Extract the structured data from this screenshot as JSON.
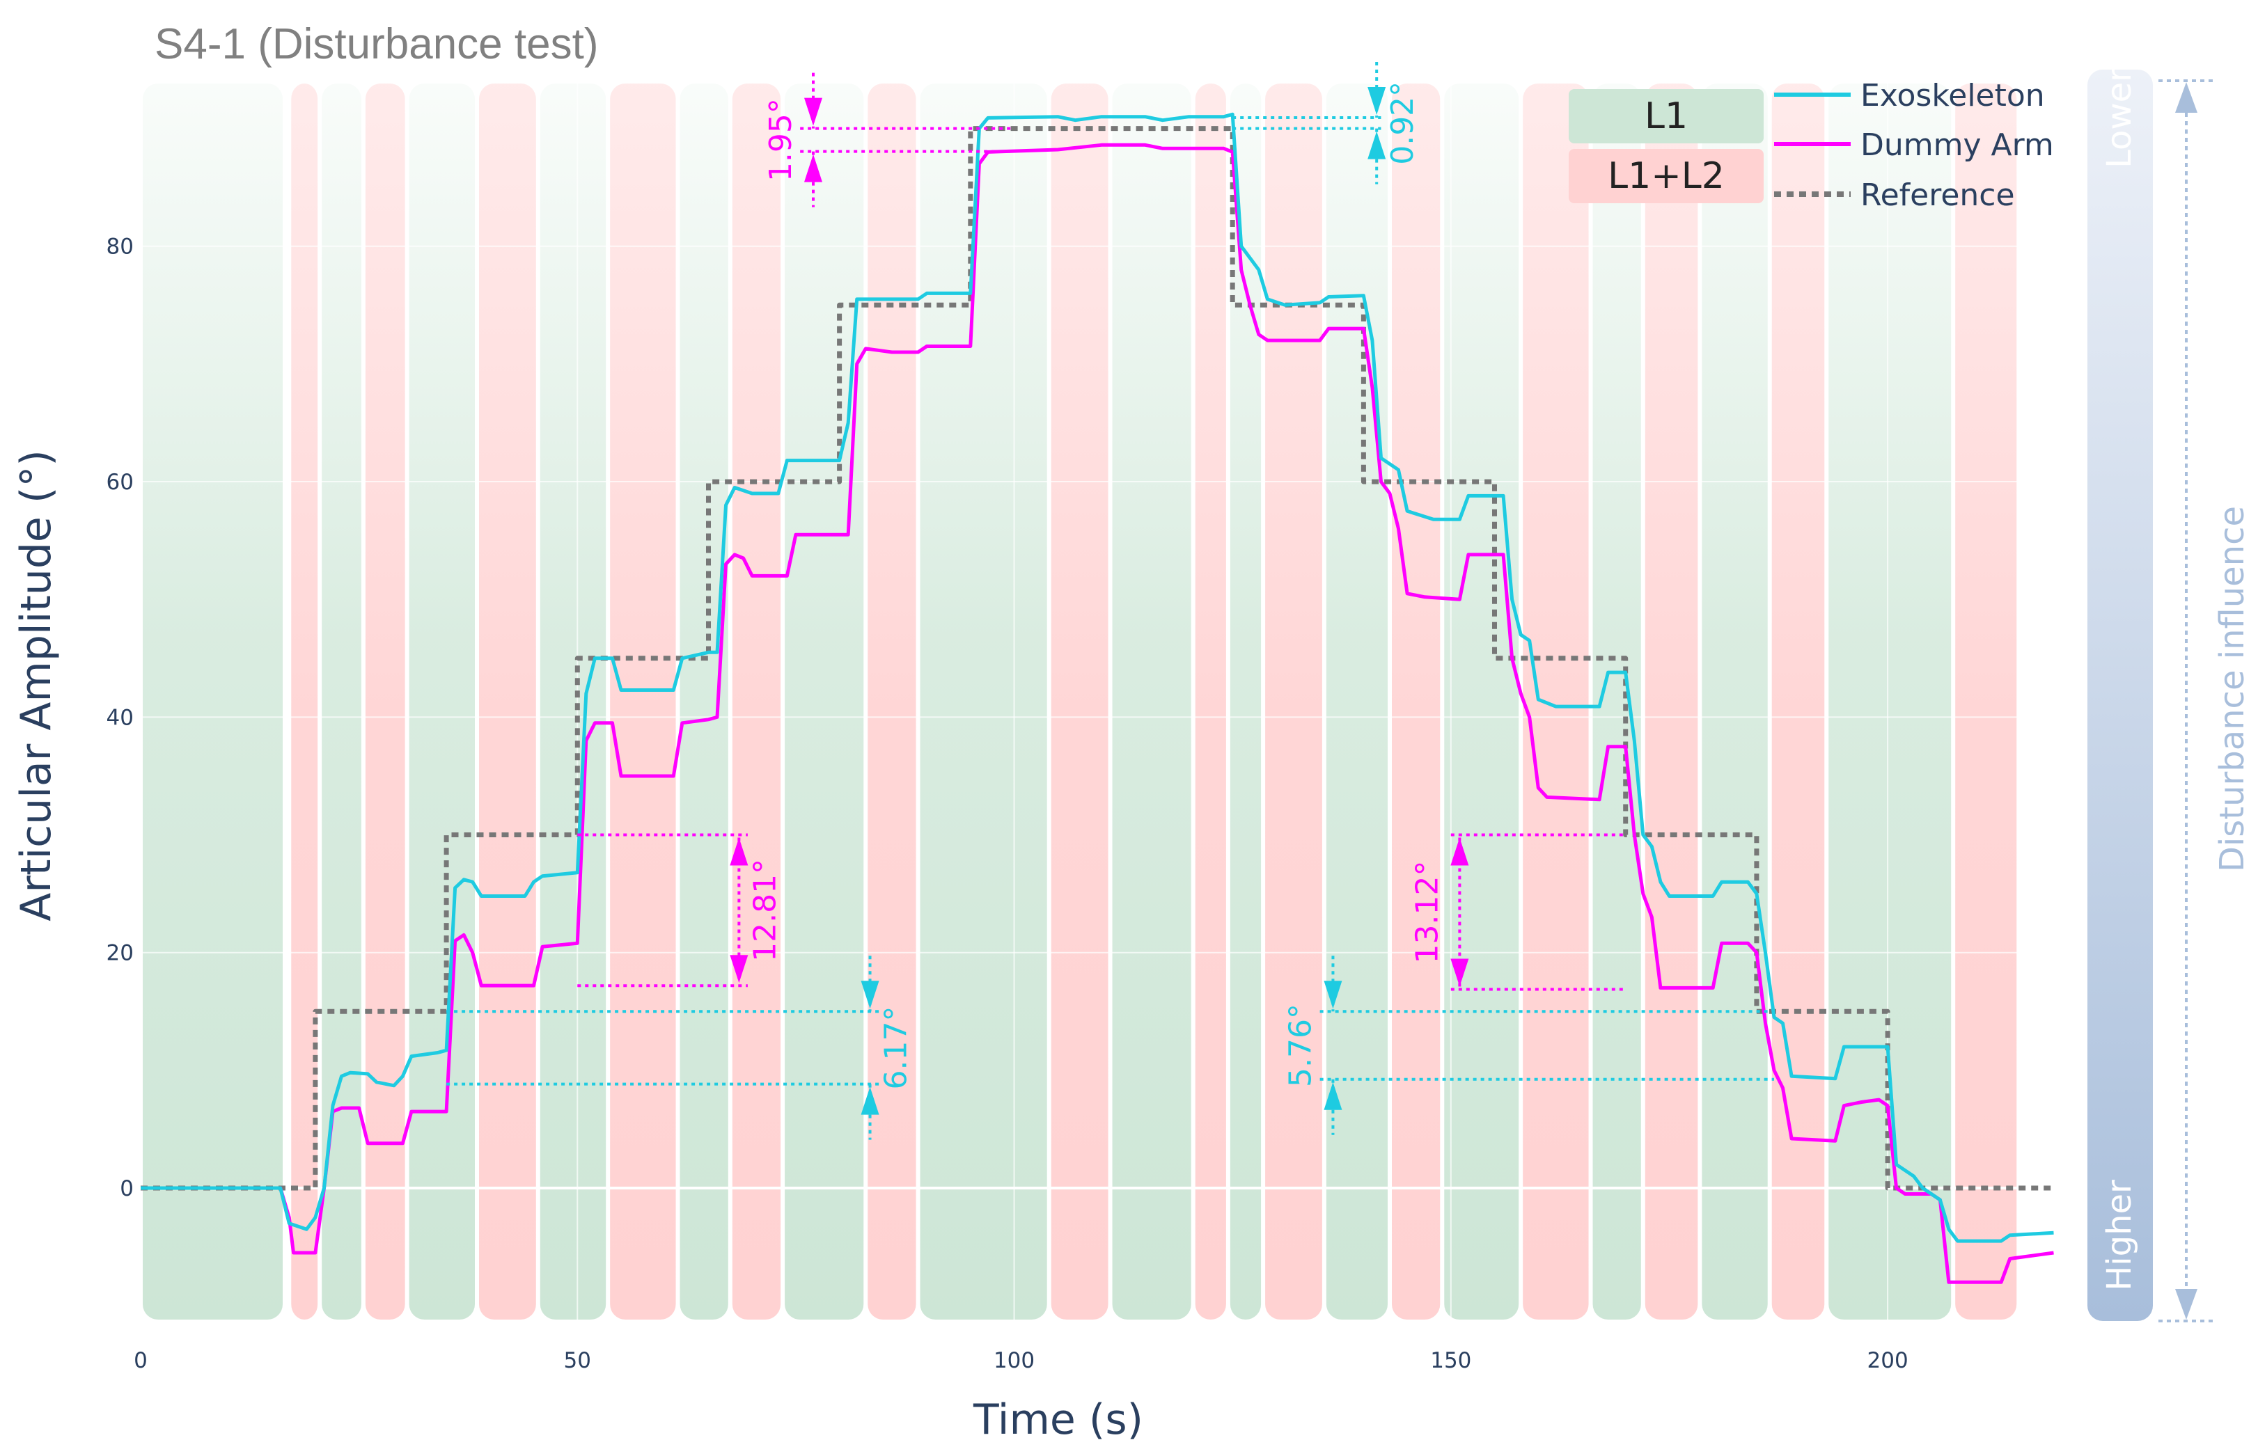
{
  "title": "S4-1 (Disturbance test)",
  "colors": {
    "exoskeleton": "#1ecbe1",
    "dummy": "#ff00ff",
    "reference": "#777777",
    "l1": "#cde6d6",
    "l2": "#ffd2d2",
    "axis_text": "#2a3f5f",
    "side": "#a8bedb"
  },
  "legend": {
    "level1": "L1",
    "level2": "L1+L2",
    "exoskeleton": "Exoskeleton",
    "dummy": "Dummy Arm",
    "reference": "Reference"
  },
  "side_scale": {
    "top": "Lower",
    "bottom": "Higher",
    "label": "Disturbance influence"
  },
  "chart_data": {
    "type": "line",
    "title": "S4-1 (Disturbance test)",
    "xlabel": "Time (s)",
    "ylabel": "Articular Amplitude (°)",
    "xlim": [
      0,
      220
    ],
    "ylim": [
      -12,
      95
    ],
    "x_ticks": [
      0,
      50,
      100,
      150,
      200
    ],
    "y_ticks": [
      0,
      20,
      40,
      60,
      80
    ],
    "grid": true,
    "legend_position": "top-right",
    "series": [
      {
        "name": "Exoskeleton",
        "points": [
          [
            0,
            0
          ],
          [
            16,
            0
          ],
          [
            17,
            -3
          ],
          [
            19,
            -3.5
          ],
          [
            20,
            -2.5
          ],
          [
            21,
            0
          ],
          [
            22,
            7
          ],
          [
            23,
            9.5
          ],
          [
            24,
            9.8
          ],
          [
            26,
            9.7
          ],
          [
            27,
            9
          ],
          [
            29,
            8.7
          ],
          [
            30,
            9.5
          ],
          [
            31,
            11.2
          ],
          [
            34,
            11.5
          ],
          [
            35,
            11.7
          ],
          [
            36,
            25.5
          ],
          [
            37,
            26.2
          ],
          [
            38,
            26
          ],
          [
            39,
            24.8
          ],
          [
            44,
            24.8
          ],
          [
            45,
            26
          ],
          [
            46,
            26.5
          ],
          [
            50,
            26.8
          ],
          [
            51,
            42
          ],
          [
            52,
            45
          ],
          [
            54,
            45
          ],
          [
            55,
            42.3
          ],
          [
            61,
            42.3
          ],
          [
            62,
            45
          ],
          [
            65,
            45.5
          ],
          [
            66,
            45.5
          ],
          [
            67,
            58
          ],
          [
            68,
            59.5
          ],
          [
            70,
            59
          ],
          [
            73,
            59
          ],
          [
            74,
            61.8
          ],
          [
            80,
            61.8
          ],
          [
            81,
            65
          ],
          [
            82,
            75.5
          ],
          [
            84,
            75.5
          ],
          [
            89,
            75.5
          ],
          [
            90,
            76
          ],
          [
            95,
            76
          ],
          [
            96,
            90
          ],
          [
            97,
            90.9
          ],
          [
            105,
            91
          ],
          [
            107,
            90.7
          ],
          [
            110,
            91
          ],
          [
            115,
            91
          ],
          [
            117,
            90.7
          ],
          [
            120,
            91
          ],
          [
            124,
            91
          ],
          [
            125,
            91.2
          ],
          [
            126,
            80
          ],
          [
            127,
            79
          ],
          [
            128,
            78
          ],
          [
            129,
            75.5
          ],
          [
            131,
            75
          ],
          [
            135,
            75.2
          ],
          [
            136,
            75.7
          ],
          [
            140,
            75.8
          ],
          [
            141,
            72
          ],
          [
            142,
            62
          ],
          [
            144,
            61
          ],
          [
            145,
            57.5
          ],
          [
            148,
            56.8
          ],
          [
            151,
            56.8
          ],
          [
            152,
            58.8
          ],
          [
            156,
            58.8
          ],
          [
            157,
            50
          ],
          [
            158,
            47
          ],
          [
            159,
            46.5
          ],
          [
            160,
            41.5
          ],
          [
            162,
            40.9
          ],
          [
            167,
            40.9
          ],
          [
            168,
            43.8
          ],
          [
            170,
            43.8
          ],
          [
            171,
            38
          ],
          [
            172,
            30
          ],
          [
            173,
            29
          ],
          [
            174,
            26
          ],
          [
            175,
            24.8
          ],
          [
            180,
            24.8
          ],
          [
            181,
            26
          ],
          [
            184,
            26
          ],
          [
            185,
            25
          ],
          [
            186,
            20
          ],
          [
            187,
            14.5
          ],
          [
            188,
            14
          ],
          [
            189,
            9.5
          ],
          [
            194,
            9.3
          ],
          [
            195,
            12
          ],
          [
            200,
            12
          ],
          [
            201,
            2
          ],
          [
            203,
            1
          ],
          [
            204,
            0
          ],
          [
            206,
            -1
          ],
          [
            207,
            -3.5
          ],
          [
            208,
            -4.5
          ],
          [
            213,
            -4.5
          ],
          [
            214,
            -4
          ],
          [
            219,
            -3.8
          ]
        ]
      },
      {
        "name": "Dummy Arm",
        "points": [
          [
            0,
            0
          ],
          [
            16,
            0
          ],
          [
            17,
            -2.5
          ],
          [
            17.5,
            -5.5
          ],
          [
            20,
            -5.5
          ],
          [
            21,
            0
          ],
          [
            22,
            6.5
          ],
          [
            23,
            6.8
          ],
          [
            25,
            6.8
          ],
          [
            26,
            3.8
          ],
          [
            30,
            3.8
          ],
          [
            31,
            6.5
          ],
          [
            35,
            6.5
          ],
          [
            36,
            21
          ],
          [
            37,
            21.5
          ],
          [
            38,
            20
          ],
          [
            39,
            17.2
          ],
          [
            45,
            17.2
          ],
          [
            46,
            20.5
          ],
          [
            50,
            20.8
          ],
          [
            51,
            38
          ],
          [
            52,
            39.5
          ],
          [
            54,
            39.5
          ],
          [
            55,
            35
          ],
          [
            61,
            35
          ],
          [
            62,
            39.5
          ],
          [
            65,
            39.8
          ],
          [
            66,
            40
          ],
          [
            67,
            53
          ],
          [
            68,
            53.8
          ],
          [
            69,
            53.5
          ],
          [
            70,
            52
          ],
          [
            74,
            52
          ],
          [
            75,
            55.5
          ],
          [
            81,
            55.5
          ],
          [
            82,
            70
          ],
          [
            83,
            71.3
          ],
          [
            86,
            71
          ],
          [
            89,
            71
          ],
          [
            90,
            71.5
          ],
          [
            95,
            71.5
          ],
          [
            96,
            87
          ],
          [
            97,
            88
          ],
          [
            105,
            88.2
          ],
          [
            110,
            88.6
          ],
          [
            115,
            88.6
          ],
          [
            117,
            88.3
          ],
          [
            120,
            88.3
          ],
          [
            124,
            88.3
          ],
          [
            125,
            88
          ],
          [
            126,
            78
          ],
          [
            127,
            75
          ],
          [
            128,
            72.5
          ],
          [
            129,
            72
          ],
          [
            135,
            72
          ],
          [
            136,
            73
          ],
          [
            140,
            73
          ],
          [
            141,
            68
          ],
          [
            142,
            60
          ],
          [
            143,
            59
          ],
          [
            144,
            56
          ],
          [
            145,
            50.5
          ],
          [
            147,
            50.2
          ],
          [
            151,
            50
          ],
          [
            152,
            53.8
          ],
          [
            156,
            53.8
          ],
          [
            157,
            45
          ],
          [
            158,
            42
          ],
          [
            159,
            40
          ],
          [
            160,
            34
          ],
          [
            161,
            33.2
          ],
          [
            167,
            33
          ],
          [
            168,
            37.5
          ],
          [
            170,
            37.5
          ],
          [
            171,
            30
          ],
          [
            172,
            25
          ],
          [
            173,
            23
          ],
          [
            174,
            17
          ],
          [
            180,
            17
          ],
          [
            181,
            20.8
          ],
          [
            184,
            20.8
          ],
          [
            185,
            20
          ],
          [
            186,
            14
          ],
          [
            187,
            10
          ],
          [
            188,
            8.5
          ],
          [
            189,
            4.2
          ],
          [
            194,
            4
          ],
          [
            195,
            7
          ],
          [
            197,
            7.3
          ],
          [
            199,
            7.5
          ],
          [
            200,
            7
          ],
          [
            201,
            0
          ],
          [
            202,
            -0.5
          ],
          [
            205,
            -0.5
          ],
          [
            206,
            -1
          ],
          [
            207,
            -8
          ],
          [
            213,
            -8
          ],
          [
            214,
            -6
          ],
          [
            219,
            -5.5
          ]
        ]
      },
      {
        "name": "Reference",
        "points": [
          [
            0,
            0
          ],
          [
            20,
            0
          ],
          [
            20,
            15
          ],
          [
            35,
            15
          ],
          [
            35,
            30
          ],
          [
            50,
            30
          ],
          [
            50,
            45
          ],
          [
            65,
            45
          ],
          [
            65,
            60
          ],
          [
            80,
            60
          ],
          [
            80,
            75
          ],
          [
            95,
            75
          ],
          [
            95,
            90
          ],
          [
            125,
            90
          ],
          [
            125,
            75
          ],
          [
            140,
            75
          ],
          [
            140,
            60
          ],
          [
            155,
            60
          ],
          [
            155,
            45
          ],
          [
            170,
            45
          ],
          [
            170,
            30
          ],
          [
            185,
            30
          ],
          [
            185,
            15
          ],
          [
            200,
            15
          ],
          [
            200,
            0
          ],
          [
            219,
            0
          ]
        ]
      }
    ],
    "phases": [
      {
        "level": "L1",
        "x": [
          0,
          16.5
        ]
      },
      {
        "level": "L1+L2",
        "x": [
          17,
          20.5
        ]
      },
      {
        "level": "L1",
        "x": [
          20.5,
          25.5
        ]
      },
      {
        "level": "L1+L2",
        "x": [
          25.5,
          30.5
        ]
      },
      {
        "level": "L1",
        "x": [
          30.5,
          38.5
        ]
      },
      {
        "level": "L1+L2",
        "x": [
          38.5,
          45.5
        ]
      },
      {
        "level": "L1",
        "x": [
          45.5,
          53.5
        ]
      },
      {
        "level": "L1+L2",
        "x": [
          53.5,
          61.5
        ]
      },
      {
        "level": "L1",
        "x": [
          61.5,
          67.5
        ]
      },
      {
        "level": "L1+L2",
        "x": [
          67.5,
          73.5
        ]
      },
      {
        "level": "L1",
        "x": [
          73.5,
          83
        ]
      },
      {
        "level": "L1+L2",
        "x": [
          83,
          89
        ]
      },
      {
        "level": "L1",
        "x": [
          89,
          104
        ]
      },
      {
        "level": "L1+L2",
        "x": [
          104,
          111
        ]
      },
      {
        "level": "L1",
        "x": [
          111,
          120.5
        ]
      },
      {
        "level": "L1+L2",
        "x": [
          120.5,
          124.5
        ]
      },
      {
        "level": "L1",
        "x": [
          124.5,
          128.5
        ]
      },
      {
        "level": "L1+L2",
        "x": [
          128.5,
          135.5
        ]
      },
      {
        "level": "L1",
        "x": [
          135.5,
          143
        ]
      },
      {
        "level": "L1+L2",
        "x": [
          143,
          149
        ]
      },
      {
        "level": "L1",
        "x": [
          149,
          158
        ]
      },
      {
        "level": "L1+L2",
        "x": [
          158,
          166
        ]
      },
      {
        "level": "L1",
        "x": [
          166,
          172
        ]
      },
      {
        "level": "L1+L2",
        "x": [
          172,
          178.5
        ]
      },
      {
        "level": "L1",
        "x": [
          178.5,
          186.5
        ]
      },
      {
        "level": "L1+L2",
        "x": [
          186.5,
          193
        ]
      },
      {
        "level": "L1",
        "x": [
          193,
          207.5
        ]
      },
      {
        "level": "L1+L2",
        "x": [
          207.5,
          215
        ]
      }
    ],
    "annotations": [
      {
        "label": "1.95°",
        "x": 77,
        "y_ref": 90,
        "y_val": 88.05,
        "bar_from": 75.5,
        "bar_to": 100,
        "series": "Dummy Arm",
        "text_side": "left"
      },
      {
        "label": "0.92°",
        "x": 141.5,
        "y_ref": 90,
        "y_val": 90.92,
        "bar_from": 125,
        "bar_to": 142,
        "series": "Exoskeleton",
        "text_side": "right"
      },
      {
        "label": "12.81°",
        "x": 68.5,
        "y_ref": 30,
        "y_val": 17.19,
        "bar_from": 50,
        "bar_to": 69.5,
        "series": "Dummy Arm",
        "text_side": "right"
      },
      {
        "label": "6.17°",
        "x": 83.5,
        "y_ref": 15,
        "y_val": 8.83,
        "bar_from": 35,
        "bar_to": 84.5,
        "series": "Exoskeleton",
        "text_side": "right"
      },
      {
        "label": "13.12°",
        "x": 151,
        "y_ref": 30,
        "y_val": 16.88,
        "bar_from": 150,
        "bar_to": 170,
        "series": "Dummy Arm",
        "text_side": "left"
      },
      {
        "label": "5.76°",
        "x": 136.5,
        "y_ref": 15,
        "y_val": 9.24,
        "bar_from": 135,
        "bar_to": 187,
        "series": "Exoskeleton",
        "text_side": "left"
      }
    ]
  }
}
